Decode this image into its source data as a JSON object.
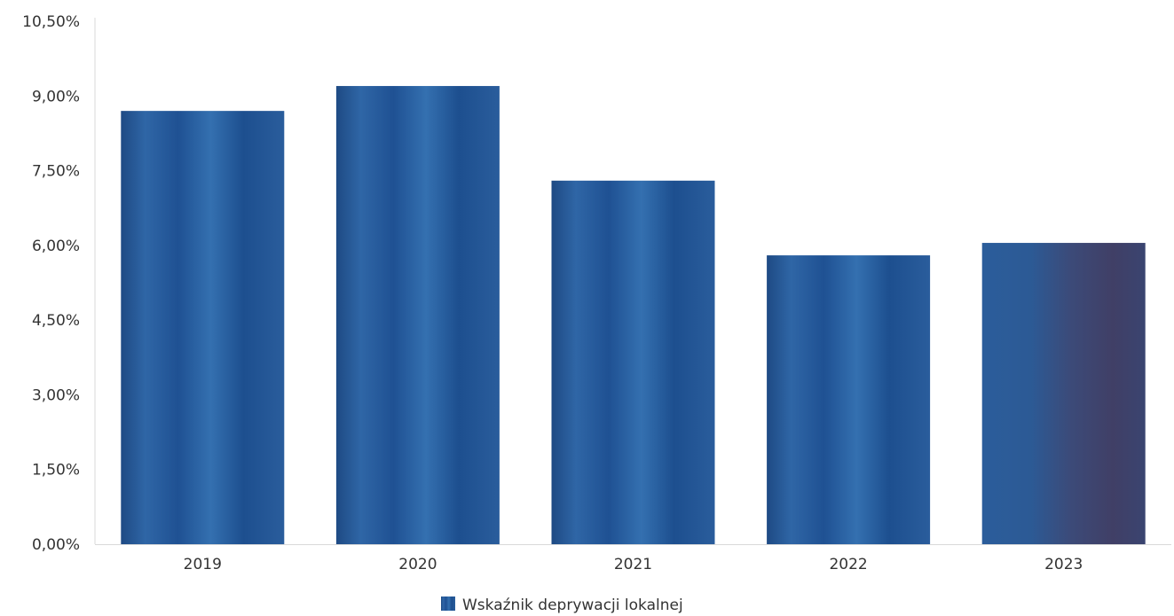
{
  "chart_data": {
    "type": "bar",
    "title": "",
    "xlabel": "",
    "ylabel": "",
    "categories": [
      "2019",
      "2020",
      "2021",
      "2022",
      "2023"
    ],
    "series": [
      {
        "name": "Wskaźnik deprywacji lokalnej",
        "values": [
          8.7,
          9.2,
          7.3,
          5.8,
          6.05
        ]
      }
    ],
    "ylim": [
      0,
      10.5
    ],
    "yticks": [
      0,
      1.5,
      3.0,
      4.5,
      6.0,
      7.5,
      9.0,
      10.5
    ],
    "ytick_labels": [
      "0,00%",
      "1,50%",
      "3,00%",
      "4,50%",
      "6,00%",
      "7,50%",
      "9,00%",
      "10,50%"
    ],
    "grid": false,
    "legend_position": "bottom-center",
    "colors": {
      "bar": "#1f4e8a",
      "bar_light": "#3a72b0",
      "bar_last_dark": "#3b3f66",
      "axis": "#d9d9d9"
    }
  }
}
